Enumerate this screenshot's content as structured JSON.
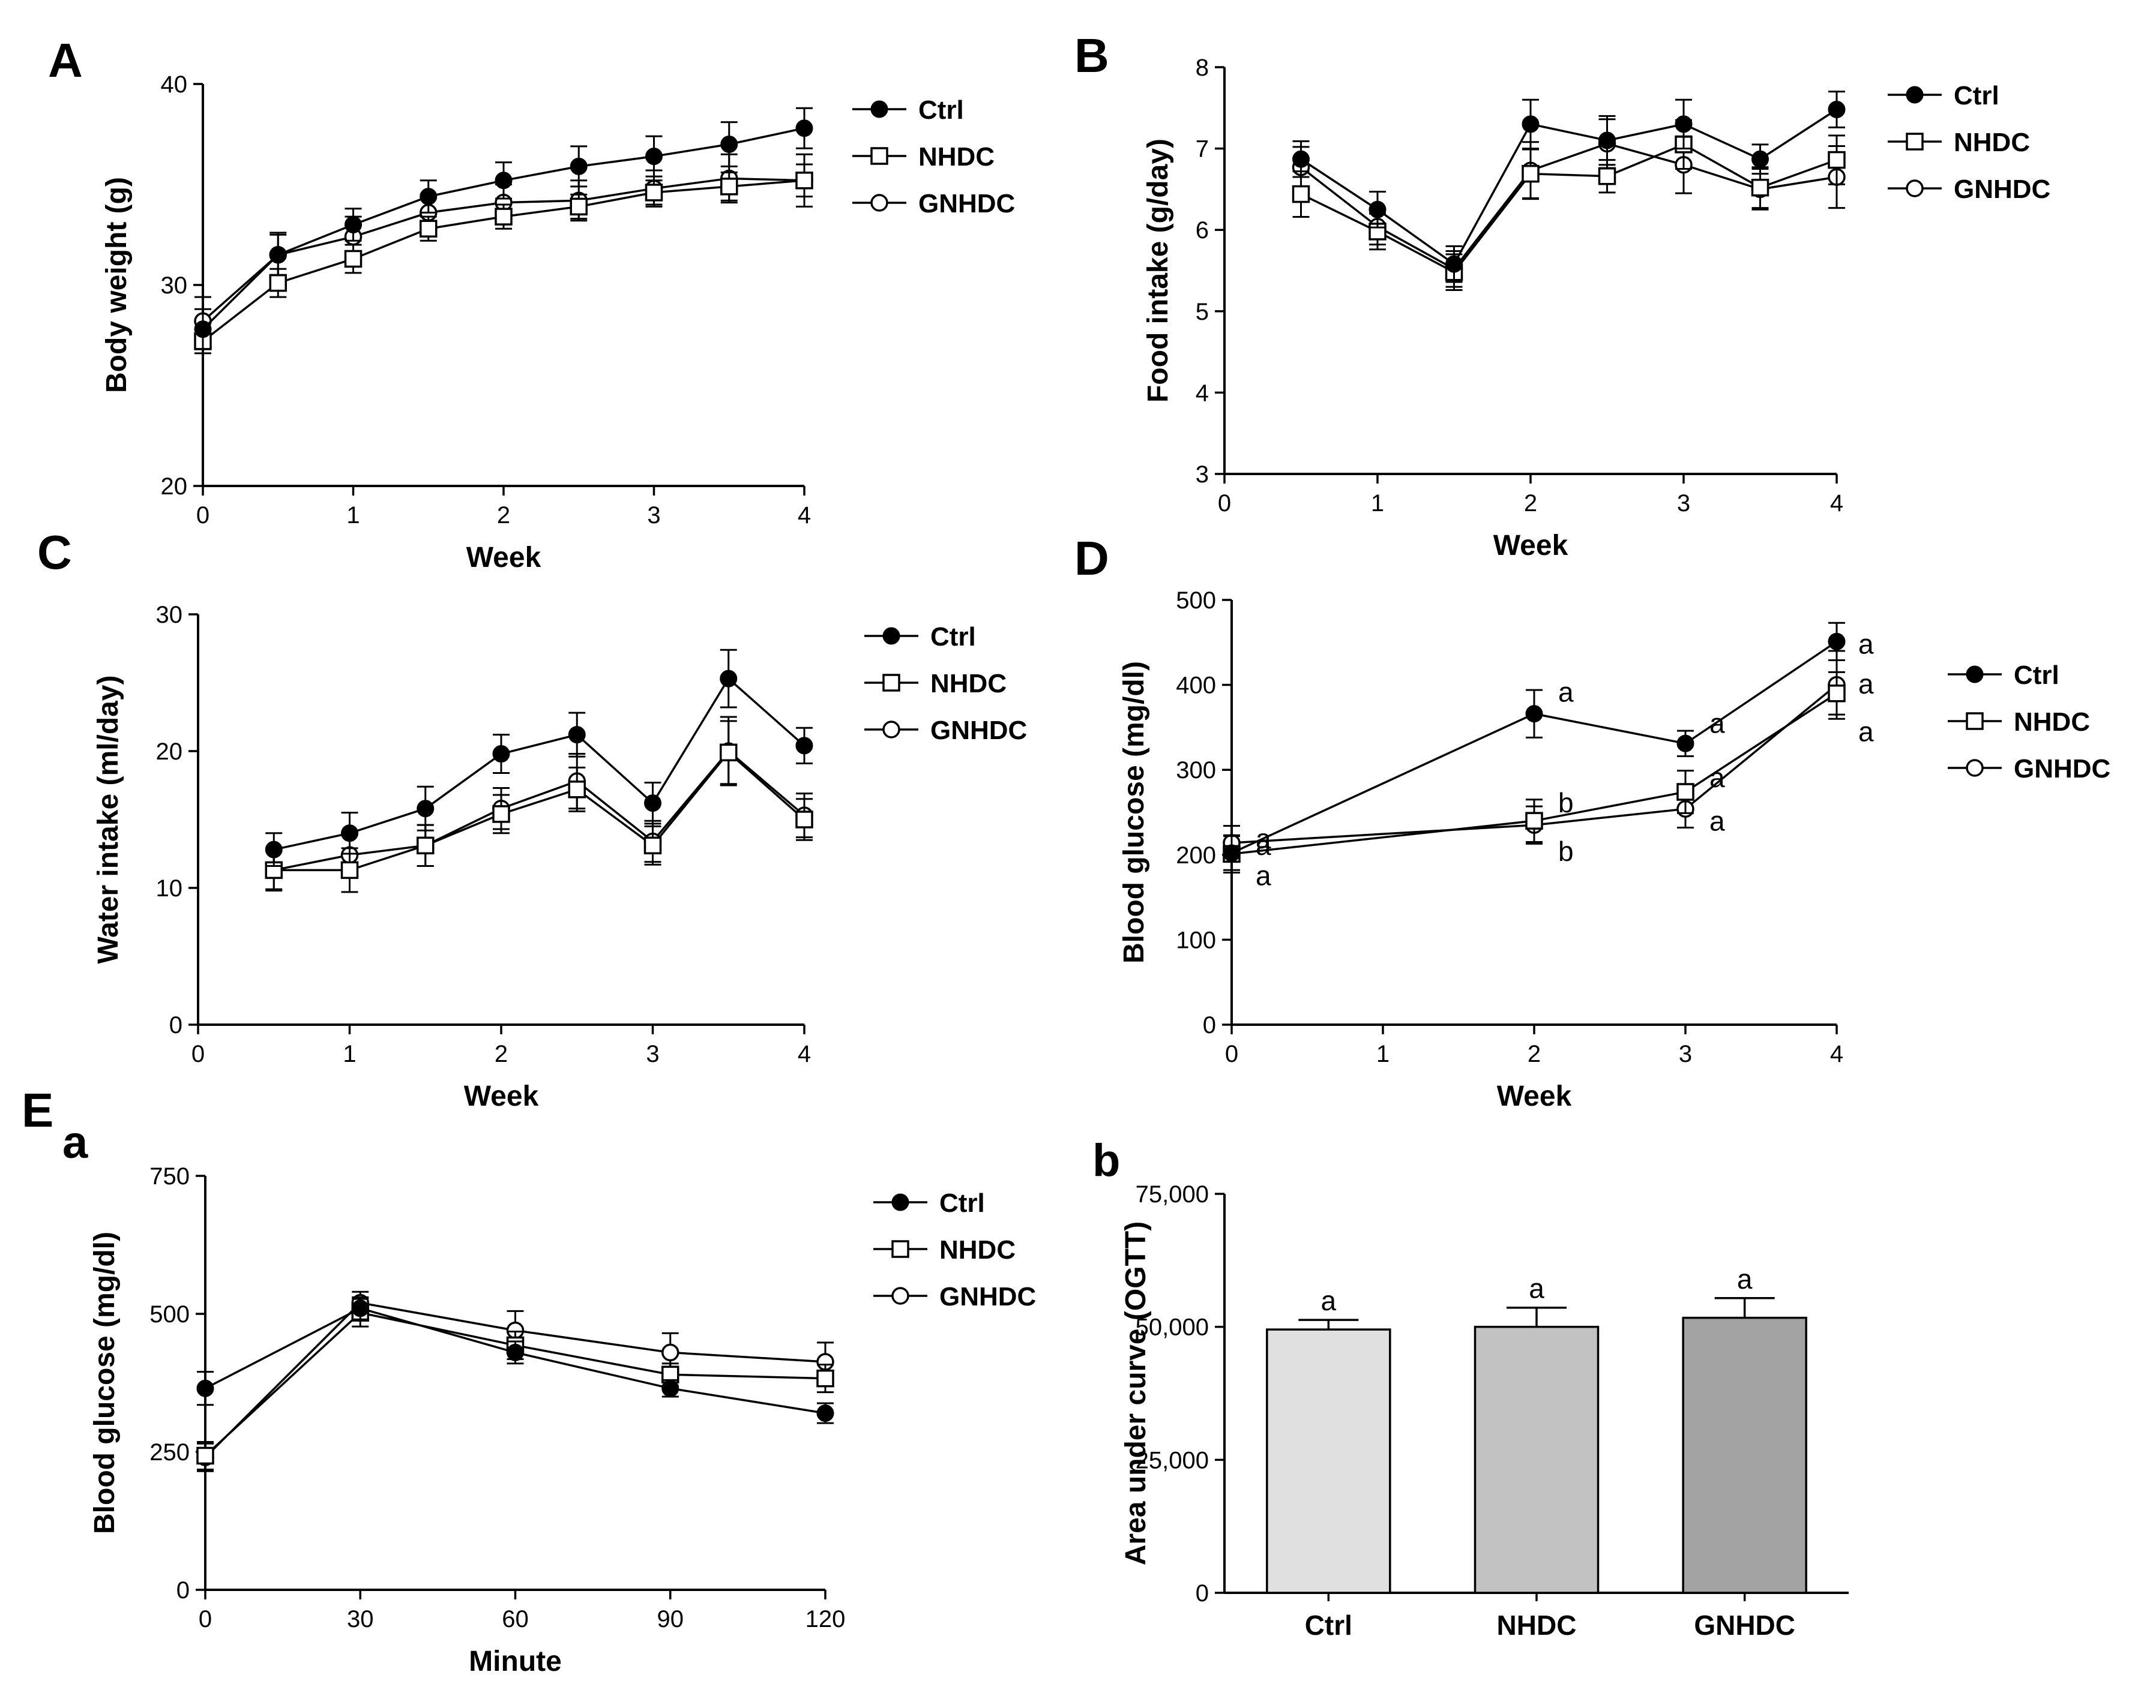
{
  "panels": {
    "A": "A",
    "B": "B",
    "C": "C",
    "D": "D",
    "E": "E",
    "Ea": "a",
    "Eb": "b"
  },
  "colors": {
    "ctrl": "#000000",
    "marker_open_fill": "#ffffff",
    "bar_ctrl": "#e0e0e0",
    "bar_nhdc": "#c2c2c2",
    "bar_gnhdc": "#a3a3a3"
  },
  "chart_data": [
    {
      "id": "A",
      "type": "line",
      "xlabel": "Week",
      "ylabel": "Body weight (g)",
      "xlim": [
        0,
        4
      ],
      "ylim": [
        20,
        40
      ],
      "xticks": [
        0,
        1,
        2,
        3,
        4
      ],
      "yticks": [
        20,
        30,
        40
      ],
      "x": [
        0,
        0.5,
        1,
        1.5,
        2,
        2.5,
        3,
        3.5,
        4
      ],
      "legend": [
        "Ctrl",
        "NHDC",
        "GNHDC"
      ],
      "series": [
        {
          "name": "Ctrl",
          "marker": "filled-circle",
          "values": [
            27.8,
            31.5,
            33.0,
            34.4,
            35.2,
            35.9,
            36.4,
            37.0,
            37.8
          ],
          "errors": [
            1.0,
            1.0,
            0.8,
            0.8,
            0.9,
            1.0,
            1.0,
            1.1,
            1.0
          ]
        },
        {
          "name": "NHDC",
          "marker": "open-square",
          "values": [
            27.2,
            30.1,
            31.3,
            32.8,
            33.4,
            33.9,
            34.6,
            34.9,
            35.2
          ],
          "errors": [
            0.6,
            0.7,
            0.7,
            0.6,
            0.6,
            0.6,
            0.6,
            0.7,
            0.8
          ]
        },
        {
          "name": "GNHDC",
          "marker": "open-circle",
          "values": [
            28.2,
            31.5,
            32.4,
            33.6,
            34.1,
            34.2,
            34.8,
            35.3,
            35.2
          ],
          "errors": [
            1.2,
            1.1,
            1.0,
            0.9,
            0.9,
            1.0,
            0.9,
            1.2,
            1.3
          ]
        }
      ]
    },
    {
      "id": "B",
      "type": "line",
      "xlabel": "Week",
      "ylabel": "Food intake (g/day)",
      "xlim": [
        0,
        4
      ],
      "ylim": [
        3,
        8
      ],
      "xticks": [
        0,
        1,
        2,
        3,
        4
      ],
      "yticks": [
        3,
        4,
        5,
        6,
        7,
        8
      ],
      "x": [
        0.5,
        1,
        1.5,
        2,
        2.5,
        3,
        3.5,
        4
      ],
      "legend": [
        "Ctrl",
        "NHDC",
        "GNHDC"
      ],
      "series": [
        {
          "name": "Ctrl",
          "marker": "filled-circle",
          "values": [
            6.87,
            6.25,
            5.58,
            7.3,
            7.1,
            7.3,
            6.87,
            7.48
          ],
          "errors": [
            0.22,
            0.22,
            0.22,
            0.3,
            0.3,
            0.3,
            0.18,
            0.22
          ]
        },
        {
          "name": "NHDC",
          "marker": "open-square",
          "values": [
            6.44,
            5.98,
            5.48,
            6.69,
            6.66,
            7.05,
            6.52,
            6.86
          ],
          "errors": [
            0.28,
            0.22,
            0.22,
            0.3,
            0.2,
            0.3,
            0.25,
            0.3
          ]
        },
        {
          "name": "GNHDC",
          "marker": "open-circle",
          "values": [
            6.77,
            6.04,
            5.52,
            6.73,
            7.06,
            6.8,
            6.5,
            6.65
          ],
          "errors": [
            0.25,
            0.22,
            0.22,
            0.35,
            0.3,
            0.35,
            0.25,
            0.38
          ]
        }
      ]
    },
    {
      "id": "C",
      "type": "line",
      "xlabel": "Week",
      "ylabel": "Water intake (ml/day)",
      "xlim": [
        0,
        4
      ],
      "ylim": [
        0,
        30
      ],
      "xticks": [
        0,
        1,
        2,
        3,
        4
      ],
      "yticks": [
        0,
        10,
        20,
        30
      ],
      "x": [
        0.5,
        1,
        1.5,
        2,
        2.5,
        3,
        3.5,
        4
      ],
      "legend": [
        "Ctrl",
        "NHDC",
        "GNHDC"
      ],
      "series": [
        {
          "name": "Ctrl",
          "marker": "filled-circle",
          "values": [
            12.8,
            14.0,
            15.8,
            19.8,
            21.2,
            16.2,
            25.3,
            20.4
          ],
          "errors": [
            1.2,
            1.5,
            1.6,
            1.4,
            1.6,
            1.5,
            2.1,
            1.3
          ]
        },
        {
          "name": "NHDC",
          "marker": "open-square",
          "values": [
            11.3,
            11.3,
            13.1,
            15.4,
            17.2,
            13.1,
            19.9,
            15.0
          ],
          "errors": [
            1.4,
            1.6,
            1.5,
            1.4,
            1.6,
            1.4,
            2.3,
            1.5
          ]
        },
        {
          "name": "GNHDC",
          "marker": "open-circle",
          "values": [
            11.3,
            12.4,
            13.1,
            15.8,
            17.8,
            13.4,
            20.0,
            15.3
          ],
          "errors": [
            1.5,
            1.5,
            1.5,
            1.5,
            2.0,
            1.5,
            2.5,
            1.6
          ]
        }
      ]
    },
    {
      "id": "D",
      "type": "line",
      "xlabel": "Week",
      "ylabel": "Blood glucose (mg/dl)",
      "xlim": [
        0,
        4
      ],
      "ylim": [
        0,
        500
      ],
      "xticks": [
        0,
        1,
        2,
        3,
        4
      ],
      "yticks": [
        0,
        100,
        200,
        300,
        400,
        500
      ],
      "x": [
        0,
        2,
        3,
        4
      ],
      "legend": [
        "Ctrl",
        "NHDC",
        "GNHDC"
      ],
      "series": [
        {
          "name": "Ctrl",
          "marker": "filled-circle",
          "values": [
            202,
            366,
            331,
            451
          ],
          "errors": [
            20,
            28,
            15,
            22
          ]
        },
        {
          "name": "NHDC",
          "marker": "open-square",
          "values": [
            201,
            240,
            274,
            390
          ],
          "errors": [
            22,
            25,
            25,
            25
          ]
        },
        {
          "name": "GNHDC",
          "marker": "open-circle",
          "values": [
            214,
            235,
            254,
            400
          ],
          "errors": [
            20,
            22,
            22,
            40
          ]
        }
      ],
      "annotations": [
        {
          "x": 0,
          "labels": [
            "a",
            "a",
            "a"
          ]
        },
        {
          "x": 2,
          "labels": [
            "a",
            "b",
            "b"
          ]
        },
        {
          "x": 3,
          "labels": [
            "a",
            "a",
            "a"
          ]
        },
        {
          "x": 4,
          "labels": [
            "a",
            "a",
            "a"
          ]
        }
      ]
    },
    {
      "id": "Ea",
      "type": "line",
      "xlabel": "Minute",
      "ylabel": "Blood glucose (mg/dl)",
      "xlim": [
        0,
        120
      ],
      "ylim": [
        0,
        750
      ],
      "xticks": [
        0,
        30,
        60,
        90,
        120
      ],
      "yticks": [
        0,
        250,
        500,
        750
      ],
      "x": [
        0,
        30,
        60,
        90,
        120
      ],
      "legend": [
        "Ctrl",
        "NHDC",
        "GNHDC"
      ],
      "series": [
        {
          "name": "Ctrl",
          "marker": "filled-circle",
          "values": [
            365,
            510,
            430,
            365,
            320
          ],
          "errors": [
            30,
            20,
            20,
            15,
            18
          ]
        },
        {
          "name": "NHDC",
          "marker": "open-square",
          "values": [
            243,
            502,
            443,
            390,
            383
          ],
          "errors": [
            25,
            25,
            25,
            20,
            25
          ]
        },
        {
          "name": "GNHDC",
          "marker": "open-circle",
          "values": [
            240,
            520,
            470,
            430,
            413
          ],
          "errors": [
            25,
            20,
            35,
            35,
            35
          ]
        }
      ]
    },
    {
      "id": "Eb",
      "type": "bar",
      "xlabel": "",
      "ylabel": "Area under curve (OGTT)",
      "ylim": [
        0,
        75000
      ],
      "yticks": [
        0,
        25000,
        50000,
        75000
      ],
      "ytick_labels": [
        "0",
        "25,000",
        "50,000",
        "75,000"
      ],
      "categories": [
        "Ctrl",
        "NHDC",
        "GNHDC"
      ],
      "values": [
        49500,
        50000,
        51700
      ],
      "errors": [
        1800,
        3600,
        3700
      ],
      "sig_labels": [
        "a",
        "a",
        "a"
      ]
    }
  ]
}
